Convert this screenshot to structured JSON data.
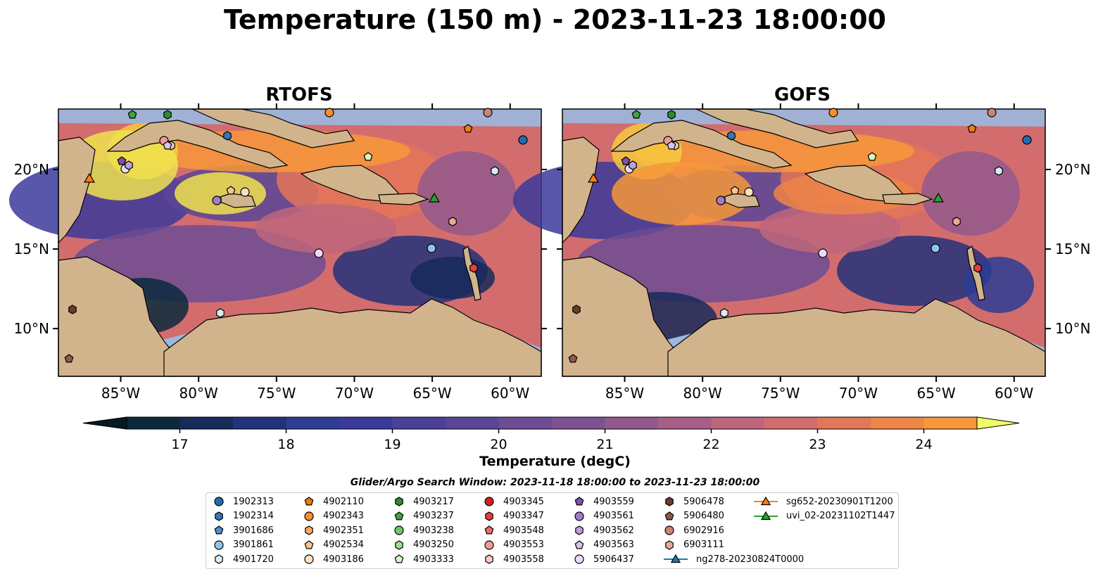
{
  "title": "Temperature (150 m) - 2023-11-23 18:00:00",
  "panels": [
    {
      "title": "RTOFS",
      "variant": "rtofs"
    },
    {
      "title": "GOFS",
      "variant": "gofs"
    }
  ],
  "lon_ticks": [
    "85°W",
    "80°W",
    "75°W",
    "70°W",
    "65°W",
    "60°W"
  ],
  "lat_ticks": [
    "20°N",
    "15°N",
    "10°N"
  ],
  "colorbar": {
    "label": "Temperature (degC)",
    "ticks": [
      "17",
      "18",
      "19",
      "20",
      "21",
      "22",
      "23",
      "24"
    ],
    "min": 16.5,
    "max": 24.5,
    "step": 0.5,
    "colors": [
      "#0a2a3c",
      "#172a5a",
      "#23327a",
      "#2d3d94",
      "#3b3a9a",
      "#4a3f99",
      "#5a4596",
      "#6c4c93",
      "#7e5290",
      "#92598c",
      "#a85f85",
      "#be667c",
      "#d36d6d",
      "#e47659",
      "#ef8547",
      "#f6983a",
      "#f9ad36",
      "#f6c93e",
      "#eee34f"
    ],
    "under_color": "#061a24",
    "over_color": "#eeff66"
  },
  "search_window": "Glider/Argo Search Window: 2023-11-18 18:00:00 to 2023-11-23 18:00:00",
  "legend": [
    {
      "label": "1902313",
      "marker": "circle",
      "color": "#1f6db0"
    },
    {
      "label": "1902314",
      "marker": "hexagon",
      "color": "#3478b8"
    },
    {
      "label": "3901686",
      "marker": "pentagon",
      "color": "#4b8fcd"
    },
    {
      "label": "3901861",
      "marker": "circle",
      "color": "#8ec4ea"
    },
    {
      "label": "4901720",
      "marker": "hexagon",
      "color": "#d6ecfb"
    },
    {
      "label": "4902110",
      "marker": "pentagon",
      "color": "#f07a10"
    },
    {
      "label": "4902343",
      "marker": "circle",
      "color": "#fb8c28"
    },
    {
      "label": "4902351",
      "marker": "hexagon",
      "color": "#fba760"
    },
    {
      "label": "4902534",
      "marker": "pentagon",
      "color": "#fdc48e"
    },
    {
      "label": "4903186",
      "marker": "circle",
      "color": "#fde0c0"
    },
    {
      "label": "4903217",
      "marker": "hexagon",
      "color": "#2e8b30"
    },
    {
      "label": "4903237",
      "marker": "pentagon",
      "color": "#3fa542"
    },
    {
      "label": "4903238",
      "marker": "circle",
      "color": "#6cc66a"
    },
    {
      "label": "4903250",
      "marker": "hexagon",
      "color": "#9ddd94"
    },
    {
      "label": "4903333",
      "marker": "pentagon",
      "color": "#d4f5c8"
    },
    {
      "label": "4903345",
      "marker": "circle",
      "color": "#d21f24"
    },
    {
      "label": "4903347",
      "marker": "hexagon",
      "color": "#e0403e"
    },
    {
      "label": "4903548",
      "marker": "pentagon",
      "color": "#ec6a66"
    },
    {
      "label": "4903553",
      "marker": "circle",
      "color": "#f39a96"
    },
    {
      "label": "4903558",
      "marker": "hexagon",
      "color": "#fbc8c4"
    },
    {
      "label": "4903559",
      "marker": "pentagon",
      "color": "#7e4fb1"
    },
    {
      "label": "4903561",
      "marker": "circle",
      "color": "#a27dc7"
    },
    {
      "label": "4903562",
      "marker": "hexagon",
      "color": "#bc9fdb"
    },
    {
      "label": "4903563",
      "marker": "pentagon",
      "color": "#d5c4ee"
    },
    {
      "label": "5906437",
      "marker": "circle",
      "color": "#ecdcfb"
    },
    {
      "label": "5906478",
      "marker": "hexagon",
      "color": "#6d3a2d"
    },
    {
      "label": "5906480",
      "marker": "pentagon",
      "color": "#8e5a48"
    },
    {
      "label": "6902916",
      "marker": "circle",
      "color": "#c98672"
    },
    {
      "label": "6903111",
      "marker": "hexagon",
      "color": "#e8ab98"
    },
    {
      "label": "ng278-20230824T0000",
      "marker": "triangle-line",
      "color": "#1f77b4"
    },
    {
      "label": "sg652-20230901T1200",
      "marker": "triangle-line",
      "color": "#ff7f0e"
    },
    {
      "label": "uvi_02-20231102T1447",
      "marker": "triangle-line",
      "color": "#2ca02c"
    }
  ]
}
